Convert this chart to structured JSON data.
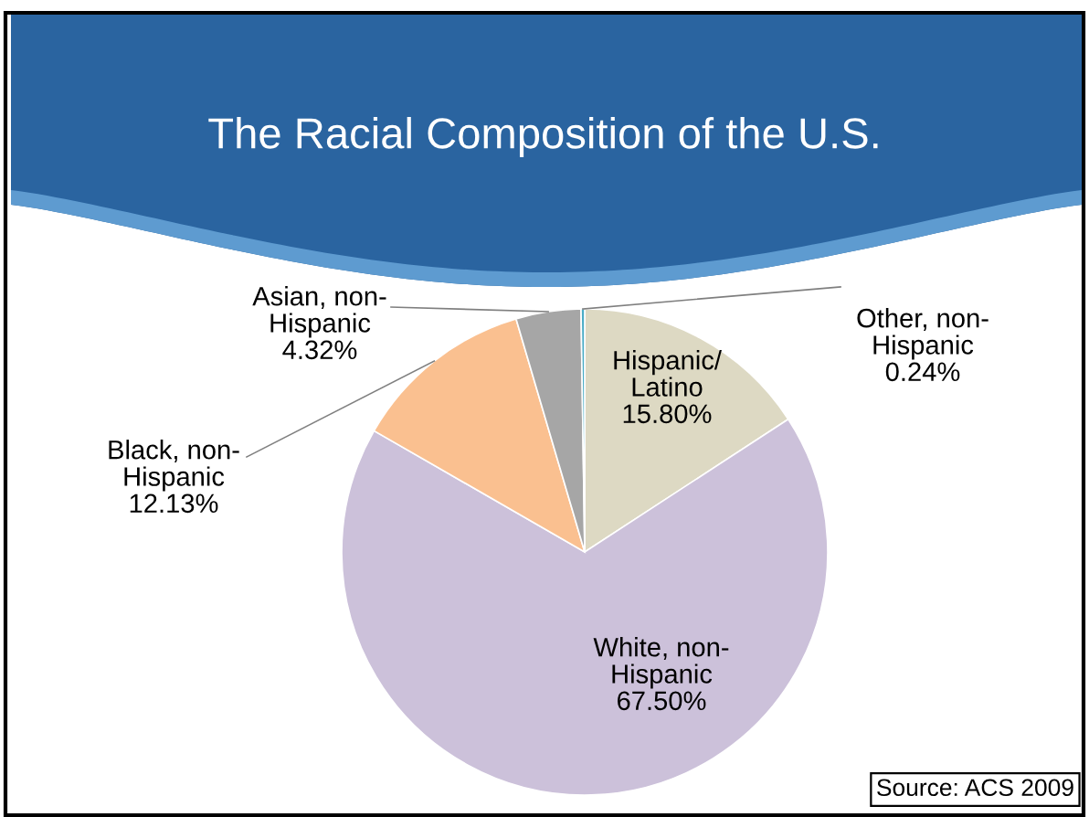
{
  "chart_data": {
    "type": "pie",
    "title": "The Racial Composition of the U.S.",
    "categories": [
      "Hispanic/\nLatino",
      "White, non-\nHispanic",
      "Black, non-\nHispanic",
      "Asian, non-\nHispanic",
      "Other, non-\nHispanic"
    ],
    "values": [
      15.8,
      67.5,
      12.13,
      4.32,
      0.24
    ],
    "value_labels": [
      "15.80%",
      "67.50%",
      "12.13%",
      "4.32%",
      "0.24%"
    ],
    "colors": [
      "#ddd9c3",
      "#ccc1da",
      "#fac090",
      "#a6a6a6",
      "#4bacc6"
    ],
    "annotations": [
      "Source: ACS 2009"
    ]
  }
}
